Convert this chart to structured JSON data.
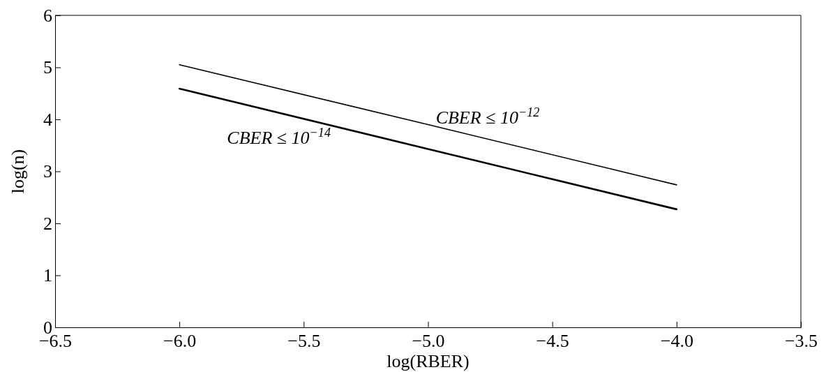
{
  "chart_data": {
    "type": "line",
    "xlabel": "log(RBER)",
    "ylabel": "log(n)",
    "xlim": [
      -6.5,
      -3.5
    ],
    "xticks": [
      {
        "value": -6.5,
        "label": "−6.5"
      },
      {
        "value": -6,
        "label": "−6.0"
      },
      {
        "value": -5.5,
        "label": "−5.5"
      },
      {
        "value": -5,
        "label": "−5.0"
      },
      {
        "value": -4.5,
        "label": "−4.5"
      },
      {
        "value": -4,
        "label": "−4.0"
      },
      {
        "value": -3.5,
        "label": "−3.5"
      }
    ],
    "ylim": [
      0,
      6
    ],
    "yticks": [
      0,
      1,
      2,
      3,
      4,
      5,
      6
    ],
    "grid": false,
    "marker": "none",
    "line_style": "solid",
    "series": [
      {
        "name": "CBER ≤ 10$^{−12}$",
        "color": "#000000",
        "x": [
          -6,
          -5,
          -4
        ],
        "values": [
          5.05,
          3.9,
          2.74
        ]
      },
      {
        "name": "CBER ≤ 10$^{−14}$",
        "color": "#000000",
        "x": [
          -6,
          -5,
          -4
        ],
        "values": [
          4.59,
          3.43,
          2.27
        ]
      }
    ]
  }
}
